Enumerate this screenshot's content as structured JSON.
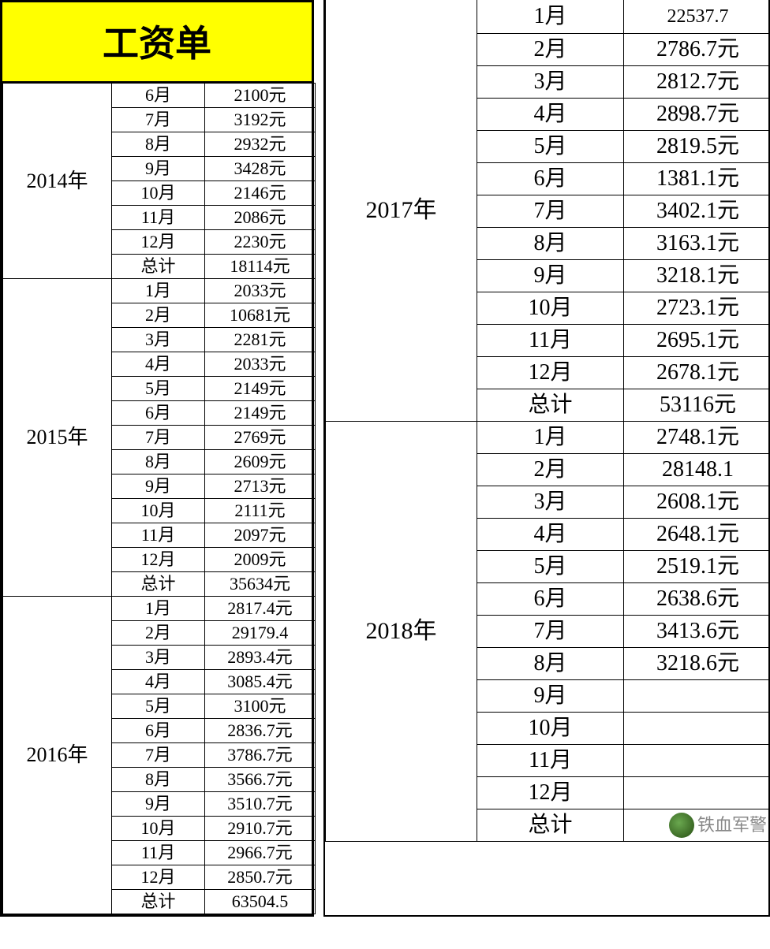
{
  "title": "工资单",
  "title_bg": "#ffff00",
  "left": {
    "years": [
      {
        "year": "2014年",
        "rows": [
          {
            "m": "6月",
            "v": "2100元"
          },
          {
            "m": "7月",
            "v": "3192元"
          },
          {
            "m": "8月",
            "v": "2932元"
          },
          {
            "m": "9月",
            "v": "3428元"
          },
          {
            "m": "10月",
            "v": "2146元"
          },
          {
            "m": "11月",
            "v": "2086元"
          },
          {
            "m": "12月",
            "v": "2230元"
          },
          {
            "m": "总计",
            "v": "18114元"
          }
        ]
      },
      {
        "year": "2015年",
        "rows": [
          {
            "m": "1月",
            "v": "2033元"
          },
          {
            "m": "2月",
            "v": "10681元"
          },
          {
            "m": "3月",
            "v": "2281元"
          },
          {
            "m": "4月",
            "v": "2033元"
          },
          {
            "m": "5月",
            "v": "2149元"
          },
          {
            "m": "6月",
            "v": "2149元"
          },
          {
            "m": "7月",
            "v": "2769元"
          },
          {
            "m": "8月",
            "v": "2609元"
          },
          {
            "m": "9月",
            "v": "2713元"
          },
          {
            "m": "10月",
            "v": "2111元"
          },
          {
            "m": "11月",
            "v": "2097元"
          },
          {
            "m": "12月",
            "v": "2009元"
          },
          {
            "m": "总计",
            "v": "35634元"
          }
        ]
      },
      {
        "year": "2016年",
        "rows": [
          {
            "m": "1月",
            "v": "2817.4元"
          },
          {
            "m": "2月",
            "v": "29179.4",
            "squash": true
          },
          {
            "m": "3月",
            "v": "2893.4元"
          },
          {
            "m": "4月",
            "v": "3085.4元"
          },
          {
            "m": "5月",
            "v": "3100元"
          },
          {
            "m": "6月",
            "v": "2836.7元"
          },
          {
            "m": "7月",
            "v": "3786.7元"
          },
          {
            "m": "8月",
            "v": "3566.7元"
          },
          {
            "m": "9月",
            "v": "3510.7元"
          },
          {
            "m": "10月",
            "v": "2910.7元"
          },
          {
            "m": "11月",
            "v": "2966.7元"
          },
          {
            "m": "12月",
            "v": "2850.7元"
          },
          {
            "m": "总计",
            "v": "63504.5",
            "squash": true
          }
        ]
      }
    ]
  },
  "right": {
    "years": [
      {
        "year": "2017年",
        "top_clip": {
          "m": "1月",
          "v": "22537.7"
        },
        "rows": [
          {
            "m": "2月",
            "v": "2786.7元"
          },
          {
            "m": "3月",
            "v": "2812.7元"
          },
          {
            "m": "4月",
            "v": "2898.7元"
          },
          {
            "m": "5月",
            "v": "2819.5元"
          },
          {
            "m": "6月",
            "v": "1381.1元"
          },
          {
            "m": "7月",
            "v": "3402.1元"
          },
          {
            "m": "8月",
            "v": "3163.1元"
          },
          {
            "m": "9月",
            "v": "3218.1元"
          },
          {
            "m": "10月",
            "v": "2723.1元"
          },
          {
            "m": "11月",
            "v": "2695.1元"
          },
          {
            "m": "12月",
            "v": "2678.1元"
          },
          {
            "m": "总计",
            "v": "53116元"
          }
        ]
      },
      {
        "year": "2018年",
        "rows": [
          {
            "m": "1月",
            "v": "2748.1元"
          },
          {
            "m": "2月",
            "v": "28148.1",
            "squash": true
          },
          {
            "m": "3月",
            "v": "2608.1元"
          },
          {
            "m": "4月",
            "v": "2648.1元"
          },
          {
            "m": "5月",
            "v": "2519.1元"
          },
          {
            "m": "6月",
            "v": "2638.6元"
          },
          {
            "m": "7月",
            "v": "3413.6元"
          },
          {
            "m": "8月",
            "v": "3218.6元"
          },
          {
            "m": "9月",
            "v": ""
          },
          {
            "m": "10月",
            "v": ""
          },
          {
            "m": "11月",
            "v": ""
          },
          {
            "m": "12月",
            "v": ""
          },
          {
            "m": "总计",
            "v": ""
          }
        ]
      }
    ]
  },
  "watermark": "铁血军警",
  "colors": {
    "border": "#000000",
    "background": "#ffffff",
    "text": "#000000",
    "watermark": "#888888"
  },
  "font": {
    "family": "SimSun",
    "title_size_pt": 34,
    "left_cell_size_pt": 16,
    "right_cell_size_pt": 21,
    "year_size_pt": 22
  }
}
